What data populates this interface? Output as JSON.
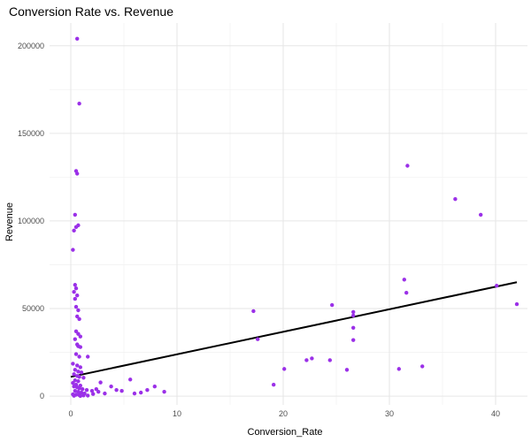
{
  "chart_data": {
    "type": "scatter",
    "title": "Conversion Rate vs. Revenue",
    "xlabel": "Conversion_Rate",
    "ylabel": "Revenue",
    "xlim": [
      -2,
      43
    ],
    "ylim": [
      -5000,
      213000
    ],
    "x_ticks": [
      0,
      10,
      20,
      30,
      40
    ],
    "y_ticks": [
      0,
      50000,
      100000,
      150000,
      200000
    ],
    "x_tick_labels": [
      "0",
      "10",
      "20",
      "30",
      "40"
    ],
    "y_tick_labels": [
      "0",
      "50000",
      "100000",
      "150000",
      "200000"
    ],
    "grid": true,
    "point_color": "#9B30E8",
    "trendline": {
      "color": "#000000",
      "x": [
        0,
        42
      ],
      "y": [
        11000,
        65000
      ]
    },
    "points": [
      [
        0.6,
        204000
      ],
      [
        0.8,
        167000
      ],
      [
        0.5,
        128500
      ],
      [
        0.6,
        127000
      ],
      [
        0.4,
        103500
      ],
      [
        0.7,
        97500
      ],
      [
        0.5,
        96500
      ],
      [
        0.3,
        94500
      ],
      [
        0.2,
        83500
      ],
      [
        0.4,
        63500
      ],
      [
        0.5,
        61500
      ],
      [
        0.3,
        59500
      ],
      [
        0.6,
        57500
      ],
      [
        0.4,
        55500
      ],
      [
        0.5,
        51000
      ],
      [
        0.7,
        49000
      ],
      [
        0.6,
        45500
      ],
      [
        0.8,
        44000
      ],
      [
        0.5,
        37000
      ],
      [
        0.7,
        35500
      ],
      [
        0.9,
        34000
      ],
      [
        0.4,
        32500
      ],
      [
        0.6,
        29500
      ],
      [
        0.7,
        28500
      ],
      [
        0.9,
        28000
      ],
      [
        0.5,
        24000
      ],
      [
        0.8,
        22500
      ],
      [
        1.6,
        22500
      ],
      [
        0.2,
        18500
      ],
      [
        0.6,
        17500
      ],
      [
        0.9,
        16500
      ],
      [
        0.4,
        15000
      ],
      [
        0.7,
        14000
      ],
      [
        1.0,
        13500
      ],
      [
        0.3,
        12500
      ],
      [
        0.6,
        11500
      ],
      [
        0.8,
        11000
      ],
      [
        1.2,
        10500
      ],
      [
        0.4,
        9000
      ],
      [
        0.7,
        8500
      ],
      [
        0.2,
        7500
      ],
      [
        0.5,
        6500
      ],
      [
        0.9,
        6000
      ],
      [
        0.3,
        5500
      ],
      [
        0.6,
        5000
      ],
      [
        0.8,
        4500
      ],
      [
        1.1,
        4000
      ],
      [
        1.5,
        3500
      ],
      [
        2.0,
        3000
      ],
      [
        0.4,
        3000
      ],
      [
        0.7,
        2500
      ],
      [
        1.0,
        2000
      ],
      [
        1.3,
        1500
      ],
      [
        0.2,
        1000
      ],
      [
        0.5,
        800
      ],
      [
        0.8,
        600
      ],
      [
        1.2,
        400
      ],
      [
        1.6,
        300
      ],
      [
        0.3,
        200
      ],
      [
        0.9,
        100
      ],
      [
        2.8,
        7800
      ],
      [
        3.8,
        5500
      ],
      [
        2.6,
        2500
      ],
      [
        3.2,
        1500
      ],
      [
        4.3,
        3500
      ],
      [
        4.8,
        3000
      ],
      [
        5.6,
        9500
      ],
      [
        6.0,
        1500
      ],
      [
        6.6,
        2000
      ],
      [
        7.2,
        3500
      ],
      [
        7.9,
        5500
      ],
      [
        8.8,
        2500
      ],
      [
        2.1,
        1200
      ],
      [
        2.4,
        4000
      ],
      [
        17.2,
        48500
      ],
      [
        17.6,
        32500
      ],
      [
        19.1,
        6500
      ],
      [
        20.1,
        15500
      ],
      [
        22.2,
        20500
      ],
      [
        22.7,
        21500
      ],
      [
        24.4,
        20500
      ],
      [
        24.6,
        52000
      ],
      [
        26.0,
        15000
      ],
      [
        26.6,
        48000
      ],
      [
        26.6,
        39000
      ],
      [
        26.6,
        32000
      ],
      [
        26.6,
        46000
      ],
      [
        30.9,
        15500
      ],
      [
        31.4,
        66500
      ],
      [
        31.6,
        59000
      ],
      [
        31.7,
        131500
      ],
      [
        33.1,
        17000
      ],
      [
        36.2,
        112500
      ],
      [
        38.6,
        103500
      ],
      [
        40.1,
        63000
      ],
      [
        42.0,
        52500
      ]
    ]
  }
}
